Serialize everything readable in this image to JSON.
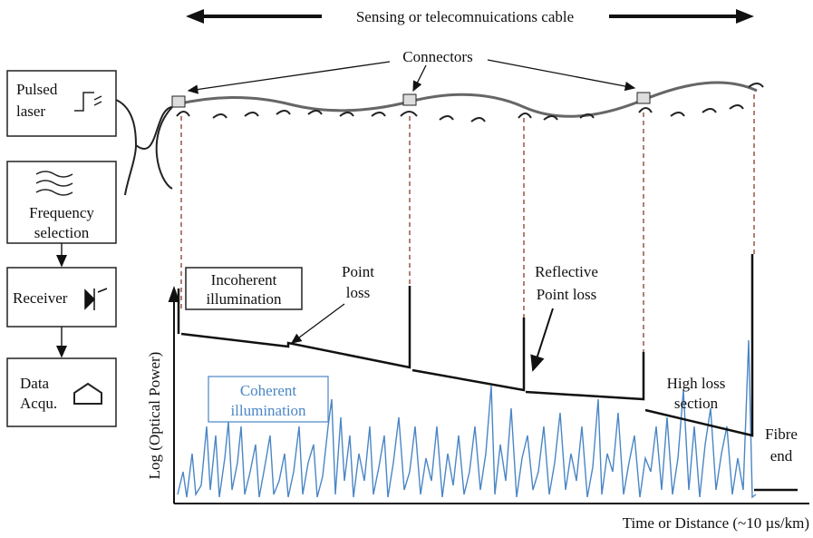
{
  "header": {
    "cable": "Sensing or telecomnuications cable",
    "connectors": "Connectors"
  },
  "blocks": {
    "pulsed_laser": [
      "Pulsed",
      "laser"
    ],
    "frequency_selection": [
      "Frequency",
      "selection"
    ],
    "receiver": "Receiver",
    "data_acquisition": [
      "Data",
      "Acqu."
    ]
  },
  "annotations": {
    "incoherent": [
      "Incoherent",
      "illumination"
    ],
    "point_loss": [
      "Point",
      "loss"
    ],
    "reflective_point_loss": [
      "Reflective",
      "Point loss"
    ],
    "coherent": [
      "Coherent",
      "illumination"
    ],
    "high_loss": [
      "High loss",
      "section"
    ],
    "fibre_end": [
      "Fibre",
      "end"
    ]
  },
  "axes": {
    "y_label": "Log (Optical Power)",
    "x_label": "Time or Distance  (~10 µs/km)"
  }
}
